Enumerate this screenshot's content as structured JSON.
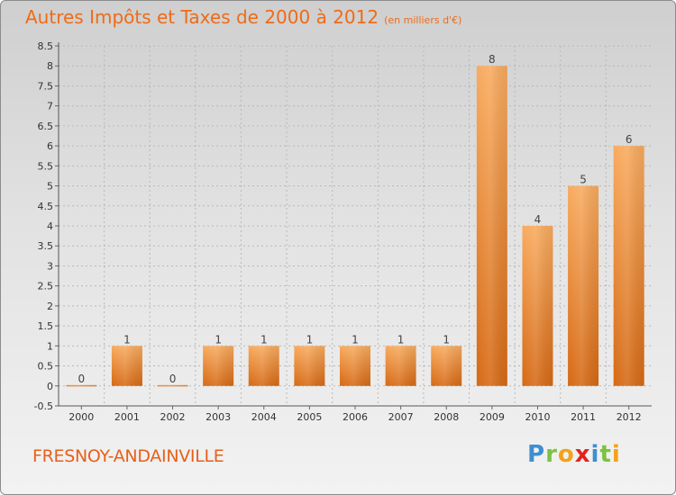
{
  "header": {
    "title": "Autres Impôts et Taxes de 2000 à 2012",
    "unit": "(en milliers d'€)"
  },
  "commune": "FRESNOY-ANDAINVILLE",
  "logo": {
    "letters": [
      {
        "ch": "P",
        "color": "#3d8fd1"
      },
      {
        "ch": "r",
        "color": "#7cc242"
      },
      {
        "ch": "o",
        "color": "#f3a21b"
      },
      {
        "ch": "x",
        "color": "#e2231a"
      },
      {
        "ch": "i",
        "color": "#3d8fd1"
      },
      {
        "ch": "t",
        "color": "#7cc242"
      },
      {
        "ch": "i",
        "color": "#f3a21b"
      }
    ]
  },
  "colors": {
    "accent": "#ef6b17",
    "bar_light": "#f7a85b",
    "bar_dark": "#d96a16",
    "grid": "#b9b9b9"
  },
  "chart_data": {
    "type": "bar",
    "title": "Autres Impôts et Taxes de 2000 à 2012",
    "subtitle": "(en milliers d'€)",
    "xlabel": "",
    "ylabel": "",
    "categories": [
      "2000",
      "2001",
      "2002",
      "2003",
      "2004",
      "2005",
      "2006",
      "2007",
      "2008",
      "2009",
      "2010",
      "2011",
      "2012"
    ],
    "values": [
      0,
      1,
      0,
      1,
      1,
      1,
      1,
      1,
      1,
      8,
      4,
      5,
      6
    ],
    "data_labels": [
      "0",
      "1",
      "0",
      "1",
      "1",
      "1",
      "1",
      "1",
      "1",
      "8",
      "4",
      "5",
      "6"
    ],
    "ylim": [
      -0.5,
      8.5
    ],
    "y_ticks": [
      "-0.5",
      "0",
      "0.5",
      "1",
      "1.5",
      "2",
      "2.5",
      "3",
      "3.5",
      "4",
      "4.5",
      "5",
      "5.5",
      "6",
      "6.5",
      "7",
      "7.5",
      "8",
      "8.5"
    ],
    "grid": true,
    "legend": "none"
  }
}
